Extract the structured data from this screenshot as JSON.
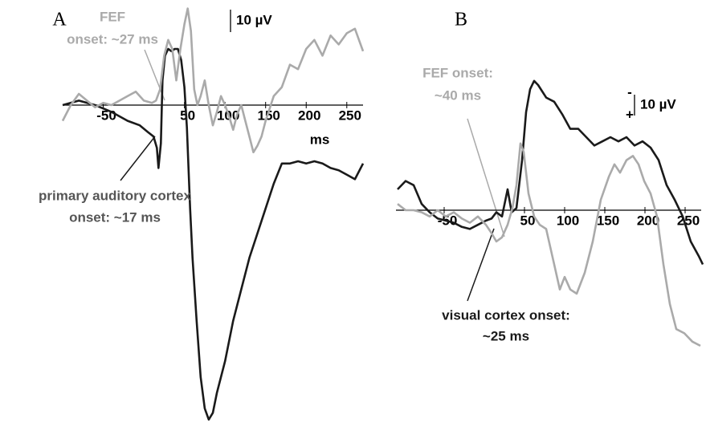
{
  "chart_data": [
    {
      "type": "line",
      "panel_label": "A",
      "x_label": "ms",
      "invert_y": true,
      "xlim": [
        -100,
        270
      ],
      "ylim": [
        -43,
        140
      ],
      "xticks": [
        -50,
        50,
        100,
        150,
        200,
        250
      ],
      "scale_bar": {
        "value": 10,
        "label": "10 µV"
      },
      "series": [
        {
          "color": "#1a1a1a",
          "x": [
            -100,
            -80,
            -60,
            -40,
            -20,
            -5,
            5,
            12,
            16,
            18,
            21,
            23,
            26,
            30,
            34,
            38,
            42,
            46,
            50,
            53,
            57,
            60,
            65,
            70,
            75,
            80,
            85,
            90,
            100,
            110,
            120,
            130,
            140,
            150,
            160,
            170,
            180,
            190,
            200,
            210,
            220,
            230,
            240,
            250,
            260,
            270
          ],
          "values": [
            0,
            -2,
            0,
            3,
            7,
            9,
            12,
            14,
            19,
            28,
            17,
            -11,
            -22,
            -25,
            -24,
            -25,
            -25,
            -20,
            -8,
            10,
            46,
            68,
            96,
            121,
            135,
            140,
            137,
            128,
            114,
            96,
            82,
            68,
            57,
            46,
            35,
            26,
            26,
            25,
            26,
            25,
            26,
            28,
            29,
            31,
            33,
            26
          ]
        },
        {
          "color": "#aaaaaa",
          "x": [
            -100,
            -90,
            -80,
            -70,
            -60,
            -50,
            -40,
            -30,
            -20,
            -10,
            0,
            10,
            15,
            20,
            25,
            30,
            35,
            40,
            45,
            50,
            54,
            58,
            62,
            66,
            70,
            75,
            80,
            85,
            90,
            95,
            100,
            105,
            110,
            115,
            120,
            125,
            130,
            135,
            140,
            145,
            150,
            160,
            170,
            180,
            190,
            200,
            210,
            220,
            230,
            240,
            250,
            260,
            270
          ],
          "values": [
            7,
            0,
            -5,
            -2,
            1,
            -1,
            0,
            -2,
            -4,
            -6,
            -2,
            -1,
            -2,
            -7,
            -22,
            -29,
            -25,
            -11,
            -25,
            -36,
            -43,
            -33,
            -7,
            0,
            -4,
            -11,
            0,
            9,
            3,
            -4,
            0,
            5,
            11,
            4,
            0,
            7,
            14,
            21,
            18,
            14,
            7,
            -4,
            -8,
            -18,
            -16,
            -25,
            -29,
            -22,
            -31,
            -27,
            -32,
            -34,
            -24
          ]
        }
      ],
      "annotations": [
        {
          "lines": [
            "FEF",
            "onset: ~27 ms"
          ],
          "color": "#aaaaaa"
        },
        {
          "lines": [
            "primary auditory cortex",
            "onset: ~17 ms"
          ],
          "color": "#555555"
        }
      ]
    },
    {
      "type": "line",
      "panel_label": "B",
      "invert_y": true,
      "xlim": [
        -110,
        270
      ],
      "ylim": [
        -63,
        66
      ],
      "xticks": [
        -50,
        50,
        100,
        150,
        200,
        250
      ],
      "scale_bar": {
        "value": 10,
        "label": "10 µV",
        "sign_top": "-",
        "sign_bottom": "+"
      },
      "series": [
        {
          "color": "#1a1a1a",
          "x": [
            -108,
            -98,
            -88,
            -78,
            -68,
            -58,
            -48,
            -38,
            -28,
            -18,
            -8,
            2,
            9,
            15,
            22,
            29,
            34,
            40,
            47,
            52,
            57,
            62,
            67,
            77,
            87,
            97,
            107,
            117,
            127,
            137,
            147,
            157,
            167,
            177,
            187,
            197,
            207,
            217,
            227,
            237,
            247,
            257,
            267,
            272
          ],
          "values": [
            -10,
            -14,
            -12,
            -3,
            1,
            4,
            5,
            6,
            8,
            9,
            7,
            5,
            4,
            1,
            3,
            -10,
            1,
            -1,
            -24,
            -47,
            -58,
            -62,
            -60,
            -54,
            -52,
            -46,
            -39,
            -39,
            -35,
            -31,
            -33,
            -35,
            -33,
            -35,
            -31,
            -33,
            -30,
            -24,
            -12,
            -5,
            3,
            15,
            22,
            26
          ]
        },
        {
          "color": "#aaaaaa",
          "x": [
            -108,
            -98,
            -88,
            -78,
            -68,
            -58,
            -48,
            -38,
            -28,
            -18,
            -8,
            2,
            9,
            15,
            22,
            29,
            35,
            40,
            45,
            49,
            55,
            62,
            69,
            77,
            87,
            94,
            100,
            107,
            115,
            125,
            135,
            145,
            155,
            162,
            169,
            177,
            185,
            192,
            199,
            207,
            215,
            223,
            231,
            239,
            249,
            259,
            269
          ],
          "values": [
            -3,
            0,
            0,
            1,
            3,
            0,
            3,
            1,
            4,
            6,
            3,
            7,
            11,
            15,
            13,
            7,
            -1,
            -12,
            -32,
            -28,
            -8,
            3,
            7,
            9,
            26,
            38,
            32,
            38,
            40,
            30,
            15,
            -5,
            -16,
            -22,
            -18,
            -24,
            -26,
            -22,
            -14,
            -8,
            3,
            26,
            45,
            57,
            59,
            63,
            65
          ]
        }
      ],
      "annotations": [
        {
          "lines": [
            "FEF onset:",
            "~40 ms"
          ],
          "color": "#aaaaaa"
        },
        {
          "lines": [
            "visual cortex onset:",
            "~25 ms"
          ],
          "color": "#1a1a1a"
        }
      ]
    }
  ]
}
